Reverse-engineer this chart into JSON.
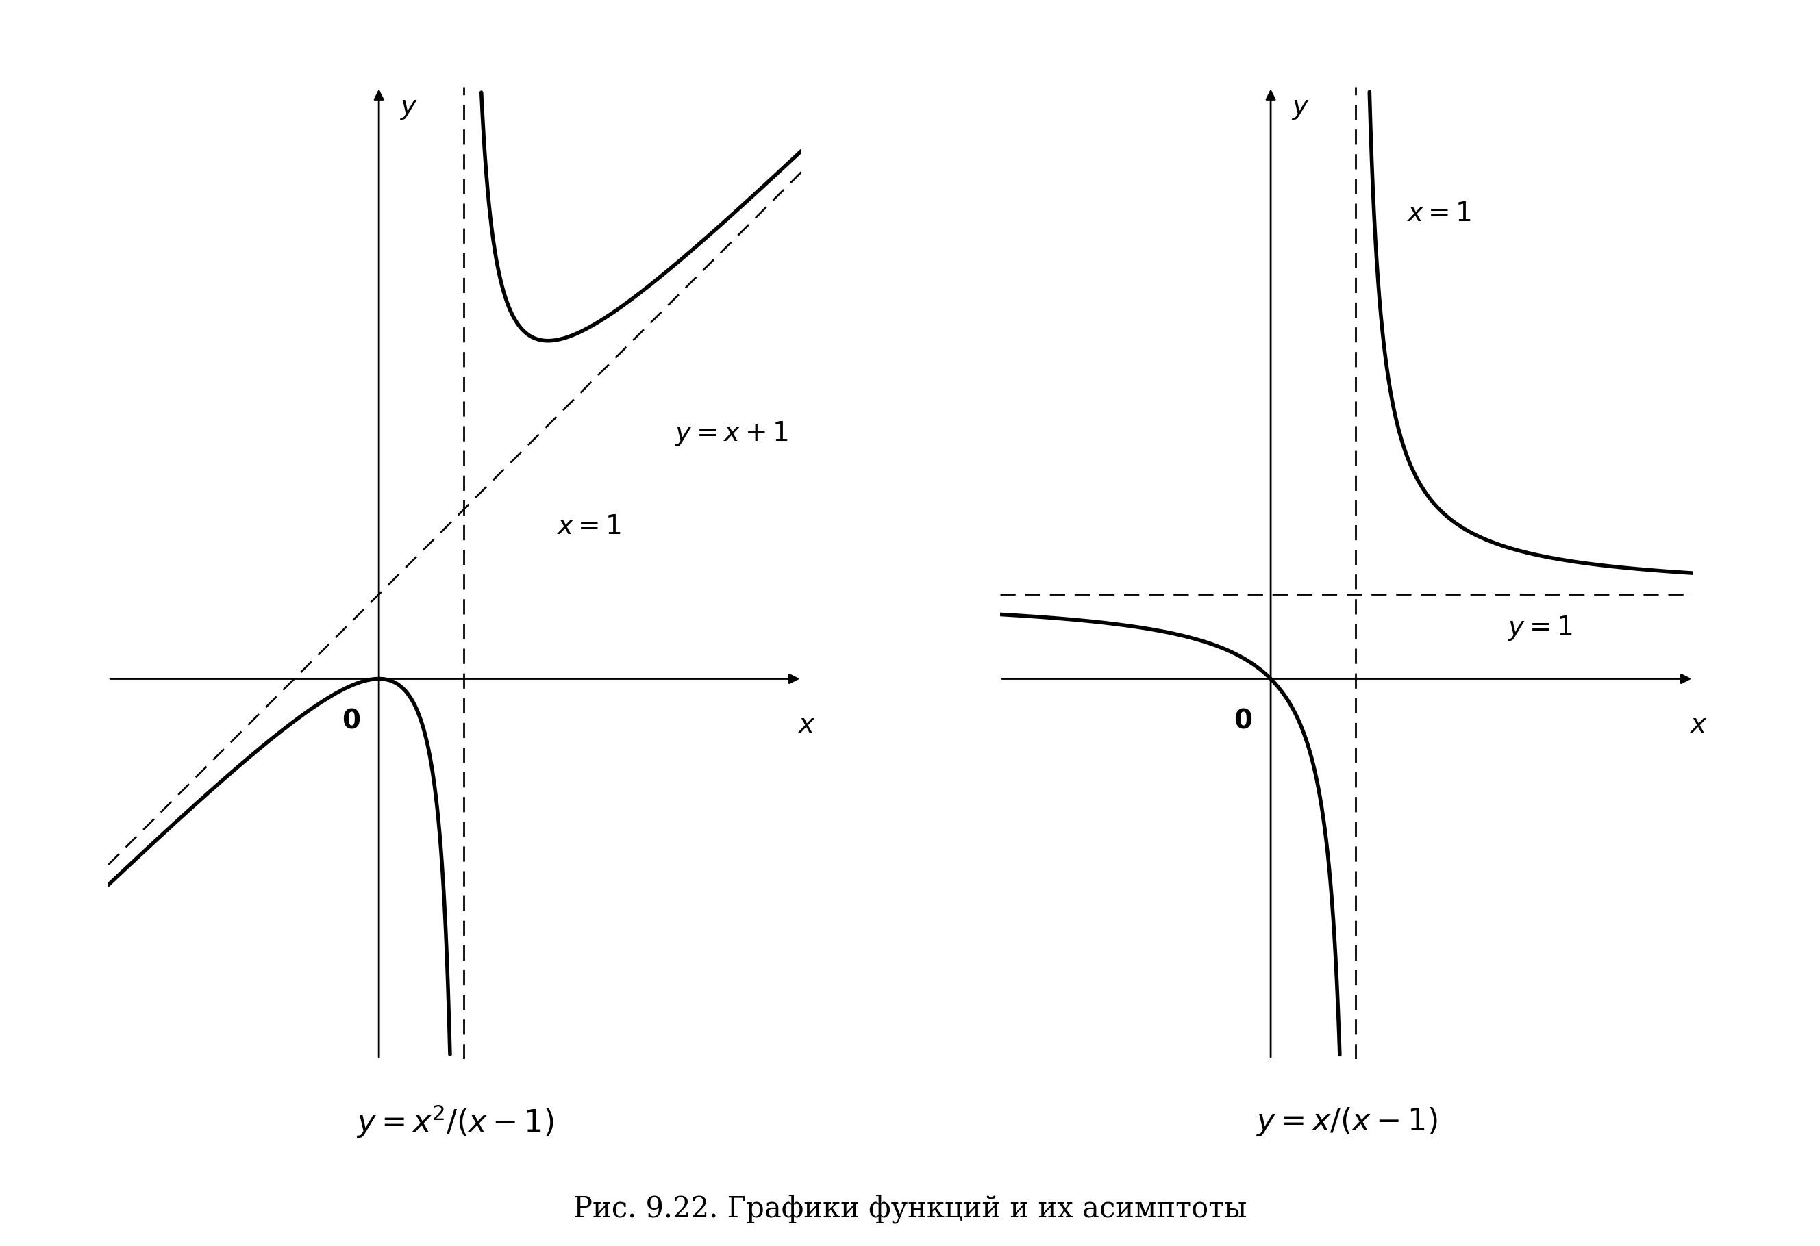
{
  "fig_width": 26.57,
  "fig_height": 18.2,
  "background_color": "#ffffff",
  "left_plot": {
    "xlim": [
      -3.2,
      5.0
    ],
    "ylim": [
      -4.5,
      7.0
    ],
    "asymptote_x": 1,
    "curve_color": "#000000",
    "asymptote_color": "#000000",
    "linewidth": 4.0,
    "asymptote_linewidth": 2.0,
    "axis_linewidth": 2.0
  },
  "right_plot": {
    "xlim": [
      -3.2,
      5.0
    ],
    "ylim": [
      -4.5,
      7.0
    ],
    "asymptote_x": 1,
    "asymptote_y": 1,
    "curve_color": "#000000",
    "asymptote_color": "#000000",
    "linewidth": 4.0,
    "asymptote_linewidth": 2.0,
    "axis_linewidth": 2.0
  },
  "label_fontsize": 28,
  "tick_fontsize": 28,
  "formula_fontsize": 32,
  "caption_fontsize": 30,
  "caption": "Рис. 9.22. Графики функций и их асимптоты"
}
